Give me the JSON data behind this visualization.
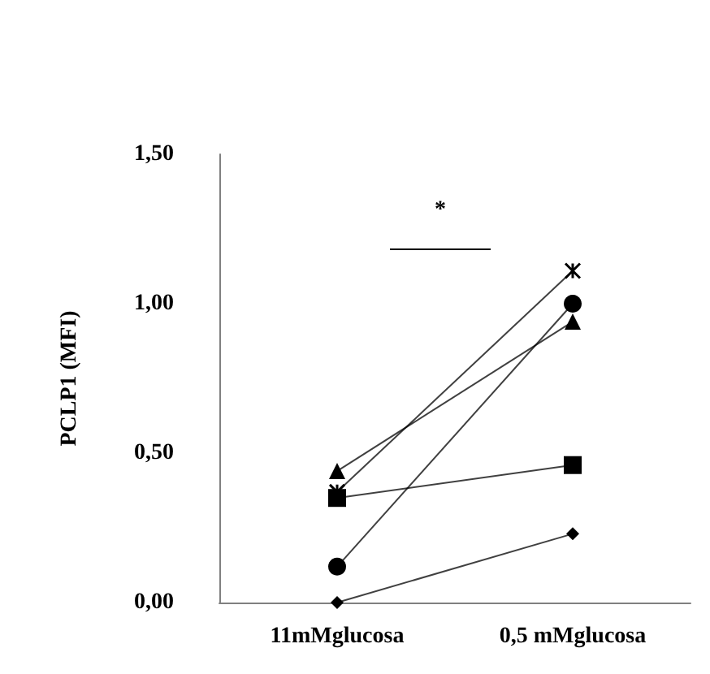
{
  "chart_data": {
    "type": "line",
    "ylabel": "PCLP1 (MFI)",
    "categories": [
      "11mMglucosa",
      "0,5 mMglucosa"
    ],
    "series": [
      {
        "color": "#000000",
        "marker": "triangle",
        "values": [
          0.44,
          0.94
        ]
      },
      {
        "color": "#000000",
        "marker": "square",
        "values": [
          0.35,
          0.46
        ]
      },
      {
        "color": "#000000",
        "marker": "circle",
        "values": [
          0.12,
          1.0
        ]
      },
      {
        "color": "#000000",
        "marker": "diamond",
        "values": [
          0.0,
          0.23
        ]
      },
      {
        "color": "#000000",
        "marker": "cross",
        "values": [
          0.37,
          1.11
        ]
      }
    ],
    "ylim": [
      0,
      1.5
    ],
    "yticks": [
      {
        "value": 0,
        "label": "0,00"
      },
      {
        "value": 0.5,
        "label": "0,50"
      },
      {
        "value": 1,
        "label": "1,00"
      },
      {
        "value": 1.5,
        "label": "1,50"
      }
    ],
    "grid": false,
    "annotations": [
      "*"
    ]
  }
}
